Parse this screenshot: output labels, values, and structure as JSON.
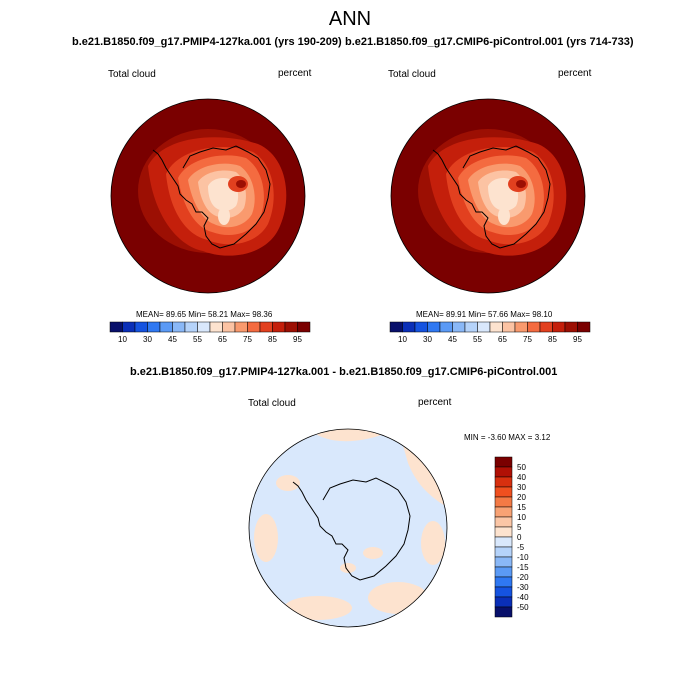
{
  "main_title": "ANN",
  "panels": [
    {
      "title": "b.e21.B1850.f09_g17.PMIP4-127ka.001 (yrs 190-209)",
      "left_label": "Total cloud",
      "right_label": "percent",
      "stats": {
        "mean": "89.65",
        "min": "58.21",
        "max": "98.36"
      },
      "stats_text": "MEAN=  89.65   Min=  58.21   Max=  98.36"
    },
    {
      "title": "b.e21.B1850.f09_g17.CMIP6-piControl.001 (yrs 714-733)",
      "left_label": "Total cloud",
      "right_label": "percent",
      "stats": {
        "mean": "89.91",
        "min": "57.66",
        "max": "98.10"
      },
      "stats_text": "MEAN=  89.91   Min=  57.66   Max=  98.10"
    },
    {
      "title": "b.e21.B1850.f09_g17.PMIP4-127ka.001 - b.e21.B1850.f09_g17.CMIP6-piControl.001",
      "left_label": "Total cloud",
      "right_label": "percent",
      "stats": {
        "min": "-3.60",
        "max": "3.12"
      },
      "stats_text": "MIN =  -3.60 MAX =   3.12"
    }
  ],
  "chart_data": [
    {
      "type": "heatmap",
      "title": "b.e21.B1850.f09_g17.PMIP4-127ka.001 (yrs 190-209)",
      "variable": "Total cloud",
      "units": "percent",
      "projection": "south polar stereographic",
      "colorbar": {
        "levels": [
          10,
          20,
          30,
          40,
          45,
          50,
          55,
          60,
          65,
          70,
          75,
          80,
          85,
          90,
          95
        ],
        "tick_labels": [
          "10",
          "30",
          "45",
          "55",
          "65",
          "75",
          "85",
          "95"
        ],
        "colors": [
          "#08106b",
          "#0a2fb8",
          "#1553e0",
          "#2f78f2",
          "#5b9af5",
          "#8ab8f7",
          "#b5d3fa",
          "#d9e8fc",
          "#fde3cf",
          "#fcc3a3",
          "#f99a6e",
          "#f46b40",
          "#e2401f",
          "#c41f0b",
          "#9c0f03",
          "#7a0000"
        ]
      },
      "statistics": {
        "mean": 89.65,
        "min": 58.21,
        "max": 98.36
      }
    },
    {
      "type": "heatmap",
      "title": "b.e21.B1850.f09_g17.CMIP6-piControl.001 (yrs 714-733)",
      "variable": "Total cloud",
      "units": "percent",
      "projection": "south polar stereographic",
      "colorbar": {
        "levels": [
          10,
          20,
          30,
          40,
          45,
          50,
          55,
          60,
          65,
          70,
          75,
          80,
          85,
          90,
          95
        ],
        "tick_labels": [
          "10",
          "30",
          "45",
          "55",
          "65",
          "75",
          "85",
          "95"
        ],
        "colors": [
          "#08106b",
          "#0a2fb8",
          "#1553e0",
          "#2f78f2",
          "#5b9af5",
          "#8ab8f7",
          "#b5d3fa",
          "#d9e8fc",
          "#fde3cf",
          "#fcc3a3",
          "#f99a6e",
          "#f46b40",
          "#e2401f",
          "#c41f0b",
          "#9c0f03",
          "#7a0000"
        ]
      },
      "statistics": {
        "mean": 89.91,
        "min": 57.66,
        "max": 98.1
      }
    },
    {
      "type": "heatmap",
      "title": "b.e21.B1850.f09_g17.PMIP4-127ka.001 - b.e21.B1850.f09_g17.CMIP6-piControl.001",
      "variable": "Total cloud",
      "units": "percent",
      "projection": "south polar stereographic",
      "colorbar": {
        "levels": [
          -50,
          -40,
          -30,
          -20,
          -15,
          -10,
          -5,
          0,
          5,
          10,
          15,
          20,
          30,
          40,
          50
        ],
        "tick_labels": [
          "50",
          "40",
          "30",
          "20",
          "15",
          "10",
          "5",
          "0",
          "-5",
          "-10",
          "-15",
          "-20",
          "-30",
          "-40",
          "-50"
        ],
        "colors": [
          "#7a0000",
          "#b01005",
          "#d8300f",
          "#f0501f",
          "#f47a45",
          "#f8a274",
          "#fbc6a6",
          "#fde3cf",
          "#d9e8fc",
          "#b5d3fa",
          "#8ab8f7",
          "#5b9af5",
          "#2f78f2",
          "#1553e0",
          "#0a2fb8",
          "#08106b"
        ]
      },
      "statistics": {
        "min": -3.6,
        "max": 3.12
      }
    }
  ]
}
